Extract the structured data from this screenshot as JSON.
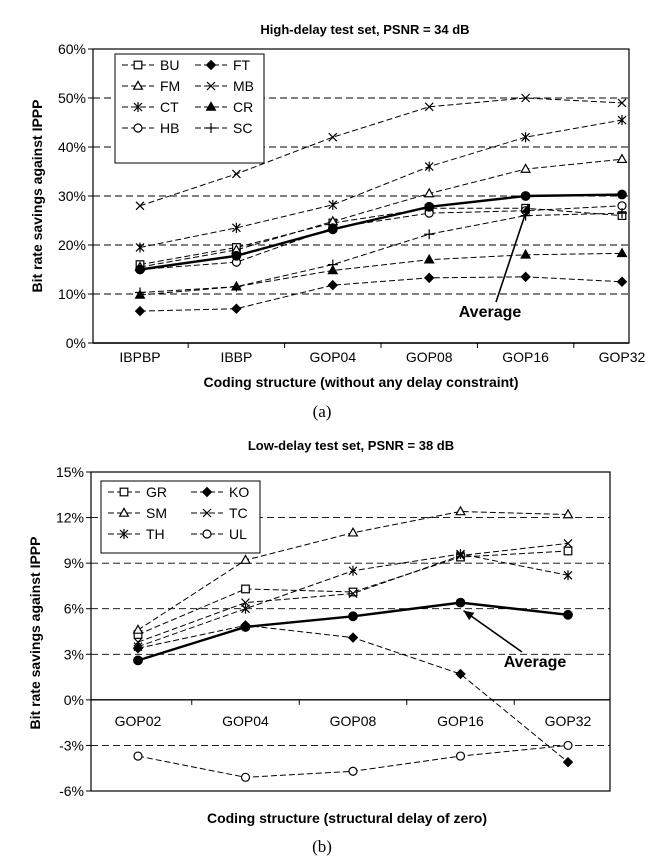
{
  "figure": {
    "captions": [
      "(a)",
      "(b)"
    ]
  },
  "chart_data": [
    {
      "type": "line",
      "title": "High-delay test set, PSNR = 34 dB",
      "xlabel": "Coding structure (without any delay constraint)",
      "ylabel": "Bit rate savings against IPPP",
      "categories": [
        "IBPBP",
        "IBBP",
        "GOP04",
        "GOP08",
        "GOP16",
        "GOP32"
      ],
      "ylim": [
        0,
        60
      ],
      "yticks": [
        0,
        10,
        20,
        30,
        40,
        50,
        60
      ],
      "ytick_labels": [
        "0%",
        "10%",
        "20%",
        "30%",
        "40%",
        "50%",
        "60%"
      ],
      "grid": "horizontal dashed",
      "legend_position": "top-left",
      "series": [
        {
          "name": "BU",
          "marker": "square",
          "values": [
            16,
            19.5,
            24.5,
            27.5,
            27.5,
            26
          ]
        },
        {
          "name": "FT",
          "marker": "diamond-filled",
          "values": [
            6.5,
            7,
            11.8,
            13.3,
            13.5,
            12.5
          ]
        },
        {
          "name": "FM",
          "marker": "triangle-open",
          "values": [
            15.5,
            19,
            24.8,
            30.5,
            35.5,
            37.5
          ]
        },
        {
          "name": "MB",
          "marker": "x",
          "values": [
            28,
            34.5,
            42,
            48.2,
            50,
            49
          ]
        },
        {
          "name": "CT",
          "marker": "star",
          "values": [
            19.5,
            23.5,
            28.2,
            36,
            42,
            45.5
          ]
        },
        {
          "name": "CR",
          "marker": "triangle-filled",
          "values": [
            9.8,
            11.5,
            14.8,
            17,
            18,
            18.3
          ]
        },
        {
          "name": "HB",
          "marker": "circle-open",
          "values": [
            15,
            16.5,
            23.5,
            26.5,
            27,
            28
          ]
        },
        {
          "name": "SC",
          "marker": "plus",
          "values": [
            10.3,
            11.5,
            16,
            22.2,
            26,
            26.5
          ]
        },
        {
          "name": "Average",
          "marker": "circle-filled",
          "values": [
            15,
            17.8,
            23.2,
            27.8,
            30,
            30.3
          ]
        }
      ],
      "annotations": [
        {
          "text": "Average",
          "arrow_to": {
            "x": "GOP16",
            "y": 30
          }
        }
      ]
    },
    {
      "type": "line",
      "title": "Low-delay test set, PSNR = 38 dB",
      "xlabel": "Coding structure (structural delay of zero)",
      "ylabel": "Bit rate savings against IPPP",
      "categories": [
        "GOP02",
        "GOP04",
        "GOP08",
        "GOP16",
        "GOP32"
      ],
      "ylim": [
        -6,
        15
      ],
      "yticks": [
        -6,
        -3,
        0,
        3,
        6,
        9,
        12,
        15
      ],
      "ytick_labels": [
        "-6%",
        "-3%",
        "0%",
        "3%",
        "6%",
        "9%",
        "12%",
        "15%"
      ],
      "grid": "horizontal dashed",
      "legend_position": "top-left",
      "series": [
        {
          "name": "GR",
          "marker": "square",
          "values": [
            4.3,
            7.3,
            7.1,
            9.4,
            9.8
          ]
        },
        {
          "name": "KO",
          "marker": "diamond-filled",
          "values": [
            3.4,
            4.9,
            4.1,
            1.7,
            -4.1
          ]
        },
        {
          "name": "SM",
          "marker": "triangle-open",
          "values": [
            4.6,
            9.2,
            11.0,
            12.4,
            12.2
          ]
        },
        {
          "name": "TC",
          "marker": "x",
          "values": [
            3.8,
            6.4,
            7.0,
            9.5,
            10.3
          ]
        },
        {
          "name": "TH",
          "marker": "star",
          "values": [
            3.5,
            6.0,
            8.5,
            9.6,
            8.2
          ]
        },
        {
          "name": "UL",
          "marker": "circle-open",
          "values": [
            -3.7,
            -5.1,
            -4.7,
            -3.7,
            -3.0
          ]
        },
        {
          "name": "Average",
          "marker": "circle-filled",
          "values": [
            2.6,
            4.8,
            5.5,
            6.4,
            5.6
          ]
        }
      ],
      "annotations": [
        {
          "text": "Average",
          "arrow_to": {
            "x": "GOP16",
            "y": 6.4
          }
        }
      ]
    }
  ]
}
